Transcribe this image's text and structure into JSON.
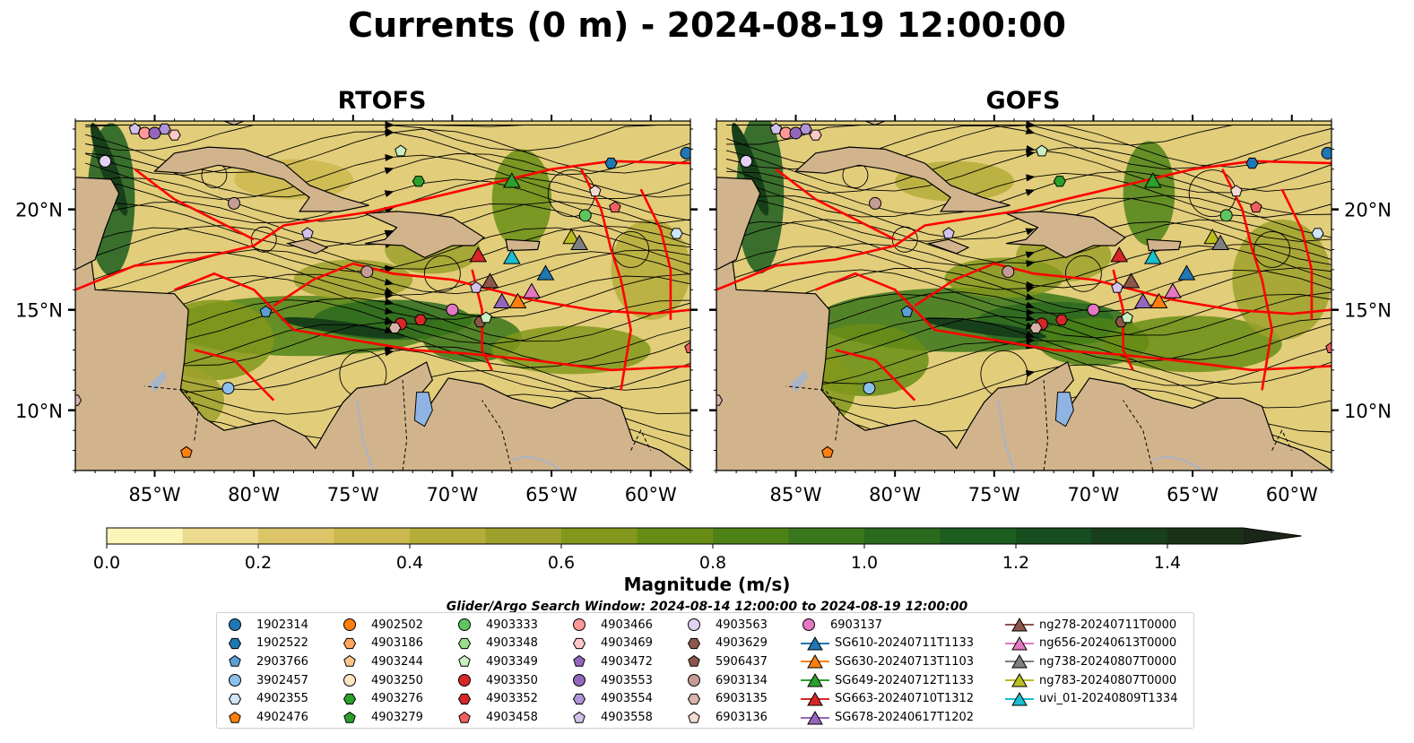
{
  "title": "Currents (0 m) - 2024-08-19 12:00:00",
  "panels": [
    {
      "title": "RTOFS"
    },
    {
      "title": "GOFS"
    }
  ],
  "map": {
    "lon_range": [
      -89.0,
      -58.0
    ],
    "lat_range": [
      7.0,
      24.4
    ],
    "x_ticks": [
      "85°W",
      "80°W",
      "75°W",
      "70°W",
      "65°W",
      "60°W"
    ],
    "y_ticks": [
      "20°N",
      "15°N",
      "10°N"
    ],
    "colors": {
      "land": "#d2b48c",
      "lake": "#8fb4e3",
      "boundary": "#ff0000",
      "river": "#9cb4d8"
    }
  },
  "colorbar": {
    "label": "Magnitude (m/s)",
    "ticks": [
      "0.0",
      "0.2",
      "0.4",
      "0.6",
      "0.8",
      "1.0",
      "1.2",
      "1.4"
    ],
    "min": 0.0,
    "max": 1.5,
    "colors": [
      "#fcf5b8",
      "#ecda8e",
      "#dcc568",
      "#cbb84e",
      "#b5ad3a",
      "#9ca12b",
      "#82981c",
      "#688d15",
      "#4e8217",
      "#3a761b",
      "#2a6a1e",
      "#1c5d20",
      "#164d1e",
      "#173f19",
      "#1a3218",
      "#1b2616"
    ]
  },
  "search_window": "Glider/Argo Search Window: 2024-08-14 12:00:00 to 2024-08-19 12:00:00",
  "legend": [
    {
      "label": "1902314",
      "shape": "circle",
      "color": "#1f77b4"
    },
    {
      "label": "1902522",
      "shape": "hexagon",
      "color": "#1f77b4"
    },
    {
      "label": "2903766",
      "shape": "pentagon",
      "color": "#5aa0d4"
    },
    {
      "label": "3902457",
      "shape": "circle",
      "color": "#8cc0ea"
    },
    {
      "label": "4902355",
      "shape": "hexagon",
      "color": "#cfe6f8"
    },
    {
      "label": "4902476",
      "shape": "pentagon",
      "color": "#ff7f0e"
    },
    {
      "label": "4902502",
      "shape": "circle",
      "color": "#ff7f0e"
    },
    {
      "label": "4903186",
      "shape": "hexagon",
      "color": "#ffa75a"
    },
    {
      "label": "4903244",
      "shape": "pentagon",
      "color": "#ffc48a"
    },
    {
      "label": "4903250",
      "shape": "circle",
      "color": "#ffe4c0"
    },
    {
      "label": "4903276",
      "shape": "hexagon",
      "color": "#2ca02c"
    },
    {
      "label": "4903279",
      "shape": "pentagon",
      "color": "#2ca02c"
    },
    {
      "label": "4903333",
      "shape": "circle",
      "color": "#5fc55f"
    },
    {
      "label": "4903348",
      "shape": "hexagon",
      "color": "#98df8a"
    },
    {
      "label": "4903349",
      "shape": "pentagon",
      "color": "#c9f0c0"
    },
    {
      "label": "4903350",
      "shape": "circle",
      "color": "#d62728"
    },
    {
      "label": "4903352",
      "shape": "hexagon",
      "color": "#d62728"
    },
    {
      "label": "4903458",
      "shape": "pentagon",
      "color": "#f06060"
    },
    {
      "label": "4903466",
      "shape": "circle",
      "color": "#ff9896"
    },
    {
      "label": "4903469",
      "shape": "hexagon",
      "color": "#ffc8c6"
    },
    {
      "label": "4903472",
      "shape": "pentagon",
      "color": "#9467bd"
    },
    {
      "label": "4903553",
      "shape": "circle",
      "color": "#9467bd"
    },
    {
      "label": "4903554",
      "shape": "hexagon",
      "color": "#b093d8"
    },
    {
      "label": "4903558",
      "shape": "pentagon",
      "color": "#d2c2ec"
    },
    {
      "label": "4903563",
      "shape": "circle",
      "color": "#e2d2f4"
    },
    {
      "label": "4903629",
      "shape": "hexagon",
      "color": "#8c564b"
    },
    {
      "label": "5906437",
      "shape": "pentagon",
      "color": "#8c564b"
    },
    {
      "label": "6903134",
      "shape": "circle",
      "color": "#c49c94"
    },
    {
      "label": "6903135",
      "shape": "hexagon",
      "color": "#d9b2a9"
    },
    {
      "label": "6903136",
      "shape": "pentagon",
      "color": "#f3dad4"
    },
    {
      "label": "6903137",
      "shape": "circle",
      "color": "#e377c2"
    },
    {
      "label": "SG610-20240711T1133",
      "shape": "triangle",
      "color": "#1f77b4"
    },
    {
      "label": "SG630-20240713T1103",
      "shape": "triangle",
      "color": "#ff7f0e"
    },
    {
      "label": "SG649-20240712T1133",
      "shape": "triangle",
      "color": "#2ca02c"
    },
    {
      "label": "SG663-20240710T1312",
      "shape": "triangle",
      "color": "#d62728"
    },
    {
      "label": "SG678-20240617T1202",
      "shape": "triangle",
      "color": "#9467bd"
    },
    {
      "label": "ng278-20240711T0000",
      "shape": "triangle",
      "color": "#8c564b"
    },
    {
      "label": "ng656-20240613T0000",
      "shape": "triangle",
      "color": "#e377c2"
    },
    {
      "label": "ng738-20240807T0000",
      "shape": "triangle",
      "color": "#7f7f7f"
    },
    {
      "label": "ng783-20240807T0000",
      "shape": "triangle",
      "color": "#bcbd22"
    },
    {
      "label": "uvi_01-20240809T1334",
      "shape": "triangle",
      "color": "#17becf"
    }
  ],
  "observations": [
    {
      "id": "1902314",
      "lon": -58.2,
      "lat": 22.8
    },
    {
      "id": "1902522",
      "lon": -62.0,
      "lat": 22.3
    },
    {
      "id": "4903349",
      "lon": -72.6,
      "lat": 22.9
    },
    {
      "id": "4903333",
      "lon": -63.3,
      "lat": 19.7
    },
    {
      "id": "4903276",
      "lon": -71.7,
      "lat": 21.4
    },
    {
      "id": "4903563",
      "lon": -87.5,
      "lat": 22.4
    },
    {
      "id": "4903466",
      "lon": -85.5,
      "lat": 23.8
    },
    {
      "id": "4903553",
      "lon": -85.0,
      "lat": 23.8
    },
    {
      "id": "4903554",
      "lon": -84.5,
      "lat": 24.0
    },
    {
      "id": "4903558",
      "lon": -86.0,
      "lat": 24.0
    },
    {
      "id": "4903469",
      "lon": -84.0,
      "lat": 23.7
    },
    {
      "id": "6903134",
      "lon": -81.0,
      "lat": 20.3
    },
    {
      "id": "4903558",
      "lon": -77.3,
      "lat": 18.8
    },
    {
      "id": "4903458",
      "lon": -61.8,
      "lat": 20.1
    },
    {
      "id": "6903136",
      "lon": -62.8,
      "lat": 20.9
    },
    {
      "id": "4902355",
      "lon": -58.7,
      "lat": 18.8
    },
    {
      "id": "4903558",
      "lon": -68.8,
      "lat": 16.1
    },
    {
      "id": "6903137",
      "lon": -70.0,
      "lat": 15.0
    },
    {
      "id": "4903629",
      "lon": -68.6,
      "lat": 14.4
    },
    {
      "id": "4903352",
      "lon": -71.6,
      "lat": 14.5
    },
    {
      "id": "4903350",
      "lon": -72.6,
      "lat": 14.3
    },
    {
      "id": "6903135",
      "lon": -72.9,
      "lat": 14.1
    },
    {
      "id": "6903134",
      "lon": -74.3,
      "lat": 16.9
    },
    {
      "id": "2903766",
      "lon": -79.4,
      "lat": 14.9
    },
    {
      "id": "3902457",
      "lon": -81.3,
      "lat": 11.1
    },
    {
      "id": "6903135",
      "lon": -89.0,
      "lat": 10.5
    },
    {
      "id": "4903349",
      "lon": -68.3,
      "lat": 14.6
    },
    {
      "id": "4902476",
      "lon": -83.4,
      "lat": 7.9
    },
    {
      "id": "4903458",
      "lon": -58.0,
      "lat": 13.1
    }
  ],
  "gliders": [
    {
      "id": "SG649-20240712T1133",
      "lon": -67.0,
      "lat": 21.4
    },
    {
      "id": "ng783-20240807T0000",
      "lon": -64.0,
      "lat": 18.6
    },
    {
      "id": "ng738-20240807T0000",
      "lon": -63.6,
      "lat": 18.3
    },
    {
      "id": "SG663-20240710T1312",
      "lon": -68.7,
      "lat": 17.7
    },
    {
      "id": "uvi_01-20240809T1334",
      "lon": -67.0,
      "lat": 17.6
    },
    {
      "id": "SG610-20240711T1133",
      "lon": -65.3,
      "lat": 16.8
    },
    {
      "id": "ng278-20240711T0000",
      "lon": -68.1,
      "lat": 16.4
    },
    {
      "id": "ng656-20240613T0000",
      "lon": -66.0,
      "lat": 15.9
    },
    {
      "id": "SG678-20240617T1202",
      "lon": -67.5,
      "lat": 15.4
    },
    {
      "id": "SG630-20240713T1103",
      "lon": -66.7,
      "lat": 15.4
    }
  ]
}
